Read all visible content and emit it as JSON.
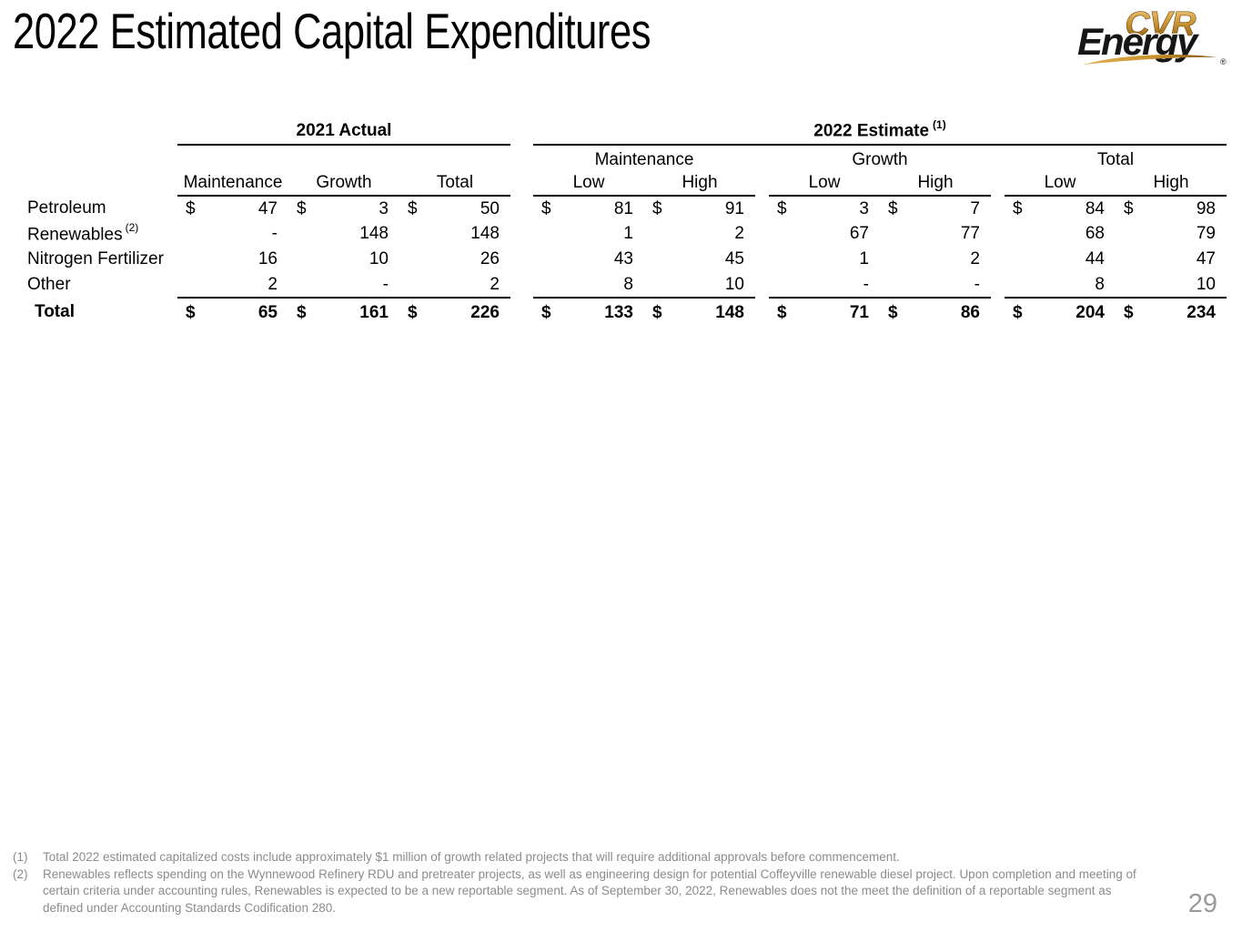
{
  "slide": {
    "title": "2022 Estimated Capital Expenditures",
    "page_number": "29"
  },
  "logo": {
    "top": "CVR",
    "bottom": "Energy",
    "registered": "®"
  },
  "colors": {
    "text": "#000000",
    "muted_gray": "#8c8c8c",
    "logo_gold_light": "#F2CC7C",
    "logo_gold_mid": "#C8912D",
    "logo_gold_dark": "#7A4E12",
    "logo_black": "#161616",
    "rule_black": "#000000"
  },
  "table": {
    "group_2021": "2021 Actual",
    "group_2022": "2022 Estimate",
    "group_2022_sup": "(1)",
    "columns_2021": [
      "Maintenance",
      "Growth",
      "Total"
    ],
    "subgroups_2022": [
      "Maintenance",
      "Growth",
      "Total"
    ],
    "low_high": [
      "Low",
      "High"
    ],
    "dollar_sign": "$",
    "rows": [
      {
        "label": "Petroleum",
        "sup": "",
        "total": false,
        "dollar": true,
        "values": [
          "47",
          "3",
          "50",
          "81",
          "91",
          "3",
          "7",
          "84",
          "98"
        ]
      },
      {
        "label": "Renewables",
        "sup": "(2)",
        "total": false,
        "dollar": false,
        "values": [
          "-",
          "148",
          "148",
          "1",
          "2",
          "67",
          "77",
          "68",
          "79"
        ]
      },
      {
        "label": "Nitrogen Fertilizer",
        "sup": "",
        "total": false,
        "dollar": false,
        "values": [
          "16",
          "10",
          "26",
          "43",
          "45",
          "1",
          "2",
          "44",
          "47"
        ]
      },
      {
        "label": "Other",
        "sup": "",
        "total": false,
        "dollar": false,
        "values": [
          "2",
          "-",
          "2",
          "8",
          "10",
          "-",
          "-",
          "8",
          "10"
        ]
      },
      {
        "label": "Total",
        "sup": "",
        "total": true,
        "dollar": true,
        "values": [
          "65",
          "161",
          "226",
          "133",
          "148",
          "71",
          "86",
          "204",
          "234"
        ]
      }
    ]
  },
  "footnotes": [
    {
      "num": "(1)",
      "text": "Total 2022 estimated capitalized costs include approximately $1 million of growth related projects that will require additional approvals before commencement."
    },
    {
      "num": "(2)",
      "text": "Renewables reflects spending on the Wynnewood Refinery RDU and pretreater projects, as well as engineering design for potential Coffeyville renewable diesel project. Upon completion and meeting of certain criteria under accounting rules, Renewables is expected to be a new reportable segment. As of September 30, 2022, Renewables does not the meet the definition of a reportable segment as defined under Accounting Standards Codification 280."
    }
  ]
}
